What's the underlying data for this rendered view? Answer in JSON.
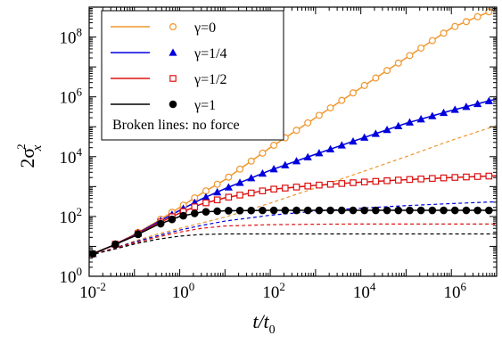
{
  "chart_data": {
    "type": "line",
    "title": "",
    "xlabel": {
      "main": "t/t",
      "sub": "0"
    },
    "ylabel": {
      "lead": "2σ",
      "sup": "2",
      "sub": "x"
    },
    "xscale": "log",
    "yscale": "log",
    "xlim": [
      0.01,
      10000000
    ],
    "ylim": [
      1,
      1000000000
    ],
    "grid": false,
    "legend_position": "top-left",
    "legend_note": "Broken lines: no force",
    "x_ticks": [
      {
        "base": "10",
        "exp": "-2"
      },
      {
        "base": "10",
        "exp": "0"
      },
      {
        "base": "10",
        "exp": "2"
      },
      {
        "base": "10",
        "exp": "4"
      },
      {
        "base": "10",
        "exp": "6"
      }
    ],
    "y_ticks": [
      {
        "base": "10",
        "exp": "0"
      },
      {
        "base": "10",
        "exp": "2"
      },
      {
        "base": "10",
        "exp": "4"
      },
      {
        "base": "10",
        "exp": "6"
      },
      {
        "base": "10",
        "exp": "8"
      }
    ],
    "series": [
      {
        "name": "γ=0",
        "color": "#f0962d",
        "marker": "open-circle",
        "x": [
          0.01,
          0.03,
          0.1,
          0.3,
          1,
          3,
          10,
          100,
          1000,
          10000,
          100000,
          1000000,
          10000000
        ],
        "y": [
          5,
          10,
          25,
          65,
          200,
          580,
          1700,
          20000,
          200000,
          2000000,
          20000000,
          200000000,
          900000000
        ],
        "no_force": {
          "x": [
            0.01,
            0.03,
            0.1,
            0.3,
            1,
            3,
            10,
            100,
            1000,
            10000,
            100000,
            1000000,
            10000000
          ],
          "y": [
            5,
            8,
            15,
            25,
            40,
            60,
            95,
            280,
            900,
            3000,
            10000,
            35000,
            110000
          ]
        }
      },
      {
        "name": "γ=1/4",
        "color": "#0000dd",
        "marker": "filled-triangle",
        "x": [
          0.01,
          0.03,
          0.1,
          0.3,
          1,
          3,
          10,
          100,
          1000,
          10000,
          100000,
          1000000,
          10000000
        ],
        "y": [
          5,
          10,
          24,
          60,
          160,
          380,
          850,
          3500,
          12000,
          40000,
          130000,
          350000,
          850000
        ],
        "no_force": {
          "x": [
            0.01,
            0.03,
            0.1,
            0.3,
            1,
            3,
            10,
            100,
            1000,
            10000,
            100000,
            1000000,
            10000000
          ],
          "y": [
            5,
            8,
            14,
            22,
            35,
            50,
            70,
            110,
            150,
            190,
            230,
            270,
            310
          ]
        }
      },
      {
        "name": "γ=1/2",
        "color": "#dd1111",
        "marker": "open-square",
        "x": [
          0.01,
          0.03,
          0.1,
          0.3,
          1,
          3,
          10,
          100,
          1000,
          10000,
          100000,
          1000000,
          10000000
        ],
        "y": [
          5,
          10,
          23,
          55,
          130,
          260,
          420,
          800,
          1100,
          1400,
          1700,
          2000,
          2300
        ],
        "no_force": {
          "x": [
            0.01,
            0.03,
            0.1,
            0.3,
            1,
            3,
            10,
            100,
            1000,
            10000,
            100000,
            1000000,
            10000000
          ],
          "y": [
            5,
            8,
            13,
            20,
            30,
            40,
            48,
            53,
            55,
            56,
            56,
            56,
            56
          ]
        }
      },
      {
        "name": "γ=1",
        "color": "#000000",
        "marker": "filled-circle",
        "x": [
          0.01,
          0.03,
          0.1,
          0.3,
          1,
          3,
          10,
          100,
          1000,
          10000,
          100000,
          1000000,
          10000000
        ],
        "y": [
          5,
          10,
          22,
          50,
          100,
          140,
          155,
          160,
          160,
          160,
          160,
          160,
          160
        ],
        "no_force": {
          "x": [
            0.01,
            0.03,
            0.1,
            0.3,
            1,
            3,
            10,
            100,
            1000,
            10000,
            100000,
            1000000,
            10000000
          ],
          "y": [
            5,
            7.5,
            12,
            17,
            22,
            25,
            26,
            26,
            26,
            26,
            26,
            26,
            26
          ]
        }
      }
    ]
  }
}
